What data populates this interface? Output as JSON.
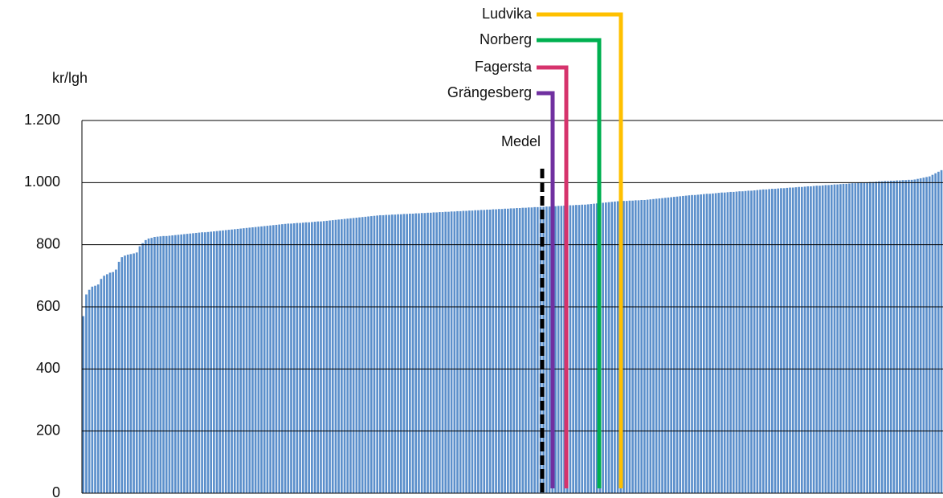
{
  "chart_data": {
    "type": "bar",
    "y_label": "kr/lgh",
    "color": "#5b8fcb",
    "ylim": [
      0,
      1200
    ],
    "yticks": [
      0,
      200,
      400,
      600,
      800,
      {
        "value": 1000,
        "label": "1.000"
      },
      {
        "value": 1200,
        "label": "1.200"
      }
    ],
    "grid": true,
    "annotations": [
      {
        "label": "Medel",
        "color": "#000000",
        "style": "dashed"
      },
      {
        "label": "Grängesberg",
        "color": "#7030a0"
      },
      {
        "label": "Fagersta",
        "color": "#d6336c"
      },
      {
        "label": "Norberg",
        "color": "#00b050"
      },
      {
        "label": "Ludvika",
        "color": "#ffc000"
      }
    ],
    "values": [
      570,
      640,
      655,
      665,
      668,
      672,
      690,
      700,
      705,
      710,
      712,
      720,
      745,
      760,
      765,
      768,
      770,
      772,
      775,
      795,
      805,
      815,
      820,
      822,
      825,
      826,
      827,
      828,
      828,
      829,
      830,
      831,
      832,
      833,
      834,
      835,
      836,
      837,
      838,
      839,
      840,
      840,
      841,
      842,
      843,
      844,
      845,
      846,
      847,
      848,
      849,
      850,
      851,
      852,
      853,
      854,
      855,
      856,
      857,
      858,
      859,
      860,
      861,
      862,
      863,
      864,
      865,
      866,
      867,
      868,
      868,
      869,
      870,
      870,
      871,
      872,
      872,
      873,
      874,
      875,
      875,
      876,
      877,
      878,
      879,
      880,
      881,
      882,
      883,
      884,
      885,
      886,
      887,
      888,
      889,
      890,
      891,
      892,
      893,
      894,
      895,
      895,
      896,
      896,
      897,
      897,
      898,
      898,
      899,
      899,
      900,
      900,
      901,
      901,
      902,
      902,
      903,
      903,
      904,
      904,
      905,
      905,
      906,
      906,
      907,
      907,
      908,
      908,
      909,
      909,
      910,
      910,
      911,
      911,
      912,
      912,
      913,
      913,
      914,
      914,
      915,
      915,
      916,
      916,
      917,
      917,
      918,
      918,
      919,
      919,
      920,
      920,
      921,
      921,
      922,
      922,
      923,
      923,
      924,
      924,
      925,
      925,
      926,
      926,
      927,
      927,
      928,
      928,
      929,
      929,
      930,
      931,
      932,
      933,
      934,
      935,
      936,
      937,
      938,
      939,
      940,
      940,
      941,
      941,
      942,
      942,
      943,
      943,
      944,
      944,
      945,
      946,
      947,
      948,
      949,
      950,
      951,
      952,
      953,
      954,
      955,
      956,
      957,
      958,
      959,
      960,
      960,
      961,
      962,
      963,
      964,
      964,
      965,
      966,
      967,
      968,
      968,
      969,
      970,
      970,
      971,
      972,
      972,
      973,
      974,
      974,
      975,
      976,
      977,
      978,
      978,
      979,
      980,
      980,
      981,
      982,
      982,
      983,
      984,
      984,
      985,
      986,
      986,
      987,
      988,
      988,
      989,
      990,
      990,
      991,
      992,
      992,
      993,
      994,
      994,
      995,
      996,
      996,
      997,
      998,
      998,
      999,
      1000,
      1000,
      1001,
      1002,
      1002,
      1003,
      1004,
      1004,
      1005,
      1005,
      1006,
      1006,
      1007,
      1007,
      1008,
      1008,
      1009,
      1009,
      1010,
      1012,
      1014,
      1016,
      1018,
      1020,
      1025,
      1030,
      1035,
      1040
    ]
  }
}
